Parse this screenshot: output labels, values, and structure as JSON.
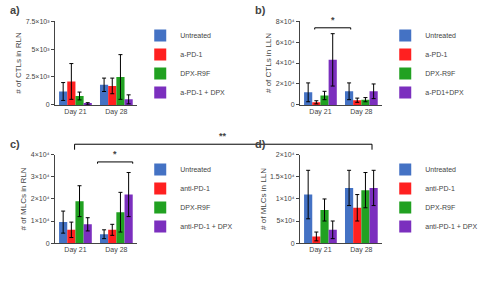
{
  "chart_data": [
    {
      "type": "bar",
      "title": "a)",
      "ylabel": "# of CTLs in RLN",
      "categories": [
        "Day 21",
        "Day 28"
      ],
      "series": [
        {
          "name": "Untreated",
          "color": "#4472C4",
          "values": [
            1200,
            1800
          ],
          "errors": [
            800,
            600
          ]
        },
        {
          "name": "a-PD-1",
          "color": "#FF2020",
          "values": [
            2100,
            1700
          ],
          "errors": [
            1600,
            700
          ]
        },
        {
          "name": "DPX-R9F",
          "color": "#21A121",
          "values": [
            800,
            2500
          ],
          "errors": [
            350,
            2000
          ]
        },
        {
          "name": "a-PD-1 + DPX",
          "color": "#7B2FBE",
          "values": [
            100,
            500
          ],
          "errors": [
            100,
            400
          ]
        }
      ],
      "ylim": [
        0,
        7500
      ],
      "yticks": [
        0,
        {
          "value": 2500,
          "label": "2.5×10³"
        },
        {
          "value": 5000,
          "label": "5×10³"
        },
        {
          "value": 7500,
          "label": "7.5×10³"
        }
      ],
      "grid": false,
      "legend": "right"
    },
    {
      "type": "bar",
      "title": "b)",
      "ylabel": "# of CTLs in LLN",
      "categories": [
        "Day 21",
        "Day 28"
      ],
      "series": [
        {
          "name": "Untreated",
          "color": "#4472C4",
          "values": [
            12000,
            13000
          ],
          "errors": [
            9000,
            8000
          ]
        },
        {
          "name": "a-PD-1",
          "color": "#FF2020",
          "values": [
            2500,
            4500
          ],
          "errors": [
            1500,
            2000
          ]
        },
        {
          "name": "DPX-R9F",
          "color": "#21A121",
          "values": [
            9000,
            5000
          ],
          "errors": [
            4000,
            2000
          ]
        },
        {
          "name": "a-PD1+DPX",
          "color": "#7B2FBE",
          "values": [
            43000,
            13000
          ],
          "errors": [
            25000,
            7000
          ]
        }
      ],
      "ylim": [
        0,
        80000
      ],
      "yticks": [
        0,
        {
          "value": 20000,
          "label": "2×10⁴"
        },
        {
          "value": 40000,
          "label": "4×10⁴"
        },
        {
          "value": 60000,
          "label": "6×10⁴"
        },
        {
          "value": 80000,
          "label": "8×10⁴"
        }
      ],
      "grid": false,
      "legend": "right",
      "annotations": [
        "*"
      ]
    },
    {
      "type": "bar",
      "title": "c)",
      "ylabel": "# of MLCs in RLN",
      "categories": [
        "Day 21",
        "Day 28"
      ],
      "series": [
        {
          "name": "Untreated",
          "color": "#4472C4",
          "values": [
            9500,
            4000
          ],
          "errors": [
            5000,
            2000
          ]
        },
        {
          "name": "anti-PD-1",
          "color": "#FF2020",
          "values": [
            6000,
            6000
          ],
          "errors": [
            3500,
            2500
          ]
        },
        {
          "name": "DPX-R9F",
          "color": "#21A121",
          "values": [
            19000,
            14000
          ],
          "errors": [
            7000,
            9000
          ]
        },
        {
          "name": "anti-PD-1 + DPX",
          "color": "#7B2FBE",
          "values": [
            8500,
            22000
          ],
          "errors": [
            3000,
            10000
          ]
        }
      ],
      "ylim": [
        0,
        40000
      ],
      "yticks": [
        0,
        {
          "value": 10000,
          "label": "1×10⁴"
        },
        {
          "value": 20000,
          "label": "2×10⁴"
        },
        {
          "value": 30000,
          "label": "3×10⁴"
        },
        {
          "value": 40000,
          "label": "4×10⁴"
        }
      ],
      "grid": false,
      "legend": "right",
      "annotations": [
        "*"
      ]
    },
    {
      "type": "bar",
      "title": "d)",
      "ylabel": "# of MLCs in LLN",
      "categories": [
        "Day 21",
        "Day 28"
      ],
      "series": [
        {
          "name": "Untreated",
          "color": "#4472C4",
          "values": [
            11000,
            12500
          ],
          "errors": [
            5500,
            4000
          ]
        },
        {
          "name": "anti-PD-1",
          "color": "#FF2020",
          "values": [
            1500,
            8000
          ],
          "errors": [
            1000,
            3000
          ]
        },
        {
          "name": "DPX-R9F",
          "color": "#21A121",
          "values": [
            7500,
            12000
          ],
          "errors": [
            2500,
            4000
          ]
        },
        {
          "name": "anti-PD-1 + DPX",
          "color": "#7B2FBE",
          "values": [
            3000,
            12500
          ],
          "errors": [
            2000,
            4000
          ]
        }
      ],
      "ylim": [
        0,
        20000
      ],
      "yticks": [
        0,
        {
          "value": 5000,
          "label": "5×10³"
        },
        {
          "value": 10000,
          "label": "1×10⁴"
        },
        {
          "value": 15000,
          "label": "1.5×10⁴"
        },
        {
          "value": 20000,
          "label": "2×10⁴"
        }
      ],
      "grid": false,
      "legend": "right"
    }
  ],
  "annotations": [
    "**"
  ]
}
